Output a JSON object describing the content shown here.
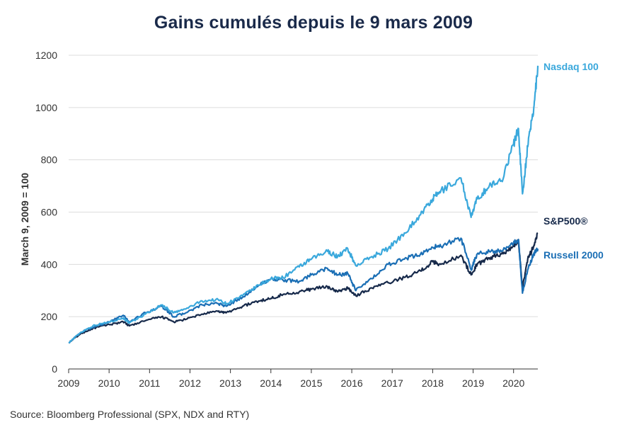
{
  "title": "Gains cumulés depuis le 9 mars 2009",
  "source": "Source: Bloomberg Professional (SPX, NDX and RTY)",
  "chart_data": {
    "type": "line",
    "ylabel": "March 9, 2009 = 100",
    "xlabel": "",
    "ylim": [
      0,
      1200
    ],
    "xlim": [
      2009,
      2020.6
    ],
    "y_ticks": [
      0,
      200,
      400,
      600,
      800,
      1000,
      1200
    ],
    "x_ticks": [
      "2009",
      "2010",
      "2011",
      "2012",
      "2013",
      "2014",
      "2015",
      "2016",
      "2017",
      "2018",
      "2019",
      "2020"
    ],
    "grid": "horizontal",
    "legend": "labels at line ends (right)",
    "series": [
      {
        "name": "Nasdaq 100",
        "color": "#3aa8dc",
        "x": [
          2009.0,
          2009.3,
          2009.6,
          2010.0,
          2010.35,
          2010.5,
          2010.9,
          2011.3,
          2011.6,
          2011.9,
          2012.3,
          2012.7,
          2012.9,
          2013.3,
          2013.7,
          2014.0,
          2014.3,
          2014.7,
          2015.0,
          2015.4,
          2015.65,
          2015.9,
          2016.1,
          2016.5,
          2016.9,
          2017.3,
          2017.7,
          2018.0,
          2018.2,
          2018.7,
          2018.95,
          2019.1,
          2019.4,
          2019.7,
          2020.0,
          2020.12,
          2020.22,
          2020.35,
          2020.5,
          2020.6
        ],
        "values": [
          100,
          140,
          165,
          180,
          195,
          175,
          210,
          245,
          215,
          230,
          260,
          265,
          250,
          280,
          320,
          345,
          350,
          390,
          420,
          450,
          430,
          460,
          395,
          430,
          460,
          520,
          590,
          650,
          680,
          730,
          580,
          650,
          700,
          720,
          860,
          920,
          670,
          850,
          1000,
          1160
        ]
      },
      {
        "name": "S&P500®",
        "color": "#16294a",
        "x": [
          2009.0,
          2009.3,
          2009.6,
          2010.0,
          2010.35,
          2010.5,
          2010.9,
          2011.3,
          2011.6,
          2011.9,
          2012.3,
          2012.7,
          2012.9,
          2013.3,
          2013.7,
          2014.0,
          2014.3,
          2014.7,
          2015.0,
          2015.4,
          2015.65,
          2015.9,
          2016.1,
          2016.5,
          2016.9,
          2017.3,
          2017.7,
          2018.0,
          2018.2,
          2018.7,
          2018.95,
          2019.1,
          2019.4,
          2019.7,
          2020.0,
          2020.12,
          2020.22,
          2020.35,
          2020.5,
          2020.6
        ],
        "values": [
          100,
          135,
          155,
          170,
          180,
          165,
          185,
          200,
          180,
          190,
          210,
          220,
          215,
          240,
          260,
          270,
          285,
          295,
          305,
          315,
          295,
          310,
          280,
          310,
          330,
          350,
          375,
          410,
          400,
          435,
          360,
          400,
          425,
          440,
          470,
          495,
          310,
          420,
          470,
          520
        ]
      },
      {
        "name": "Russell 2000",
        "color": "#1b6fb5",
        "x": [
          2009.0,
          2009.3,
          2009.6,
          2010.0,
          2010.35,
          2010.5,
          2010.9,
          2011.3,
          2011.6,
          2011.9,
          2012.3,
          2012.7,
          2012.9,
          2013.3,
          2013.7,
          2014.0,
          2014.3,
          2014.7,
          2015.0,
          2015.4,
          2015.65,
          2015.9,
          2016.1,
          2016.5,
          2016.9,
          2017.3,
          2017.7,
          2018.0,
          2018.2,
          2018.7,
          2018.95,
          2019.1,
          2019.4,
          2019.7,
          2020.0,
          2020.12,
          2020.22,
          2020.35,
          2020.5,
          2020.6
        ],
        "values": [
          100,
          140,
          160,
          180,
          205,
          180,
          215,
          240,
          200,
          215,
          245,
          250,
          240,
          275,
          320,
          345,
          340,
          335,
          360,
          385,
          360,
          365,
          300,
          345,
          400,
          420,
          440,
          465,
          470,
          500,
          380,
          440,
          450,
          450,
          480,
          495,
          290,
          380,
          440,
          460
        ]
      }
    ]
  }
}
